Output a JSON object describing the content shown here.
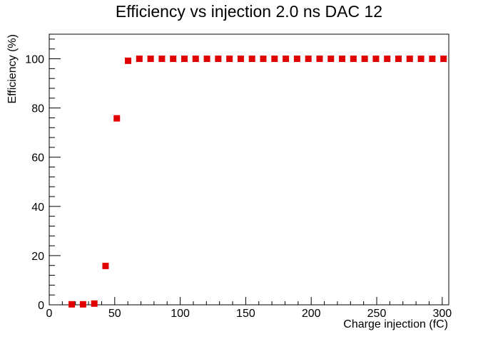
{
  "chart_data": {
    "type": "scatter",
    "title": "Efficiency vs injection 2.0 ns DAC 12",
    "xlabel": "Charge injection (fC)",
    "ylabel": "Efficiency (%)",
    "xlim": [
      0,
      305
    ],
    "ylim": [
      0,
      110
    ],
    "x_ticks": [
      0,
      50,
      100,
      150,
      200,
      250,
      300
    ],
    "y_ticks": [
      0,
      20,
      40,
      60,
      80,
      100
    ],
    "grid": false,
    "legend": "none",
    "marker": "square",
    "color": "#e00000",
    "series": [
      {
        "x": [
          17.2,
          25.8,
          34.4,
          43.0,
          51.6,
          60.2,
          68.8,
          77.4,
          86.0,
          94.6,
          103.2,
          111.8,
          120.4,
          129.0,
          137.6,
          146.2,
          154.8,
          163.4,
          172.0,
          180.6,
          189.2,
          197.8,
          206.4,
          215.0,
          223.6,
          232.2,
          240.8,
          249.4,
          258.0,
          266.6,
          275.2,
          283.8,
          292.4,
          301.0
        ],
        "y": [
          0.2,
          0.2,
          0.5,
          15.8,
          75.8,
          99.2,
          100,
          100,
          100,
          100,
          100,
          100,
          100,
          100,
          100,
          100,
          100,
          100,
          100,
          100,
          100,
          100,
          100,
          100,
          100,
          100,
          100,
          100,
          100,
          100,
          100,
          100,
          100,
          100
        ]
      }
    ]
  }
}
